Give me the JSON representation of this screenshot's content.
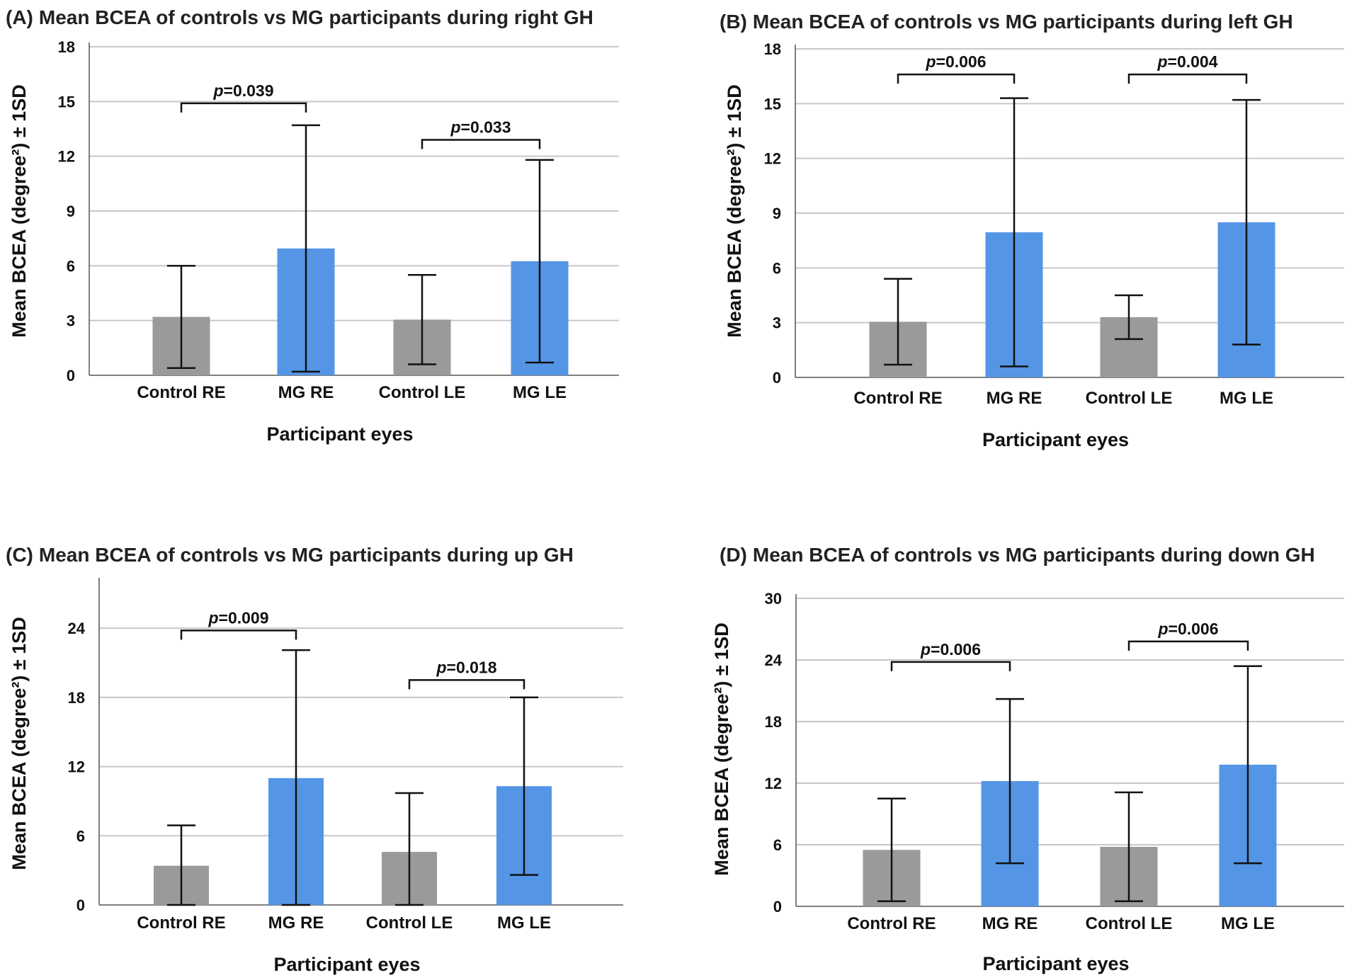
{
  "chart_data": [
    {
      "panel": "(A)",
      "type": "bar",
      "title": "Mean BCEA of controls vs MG participants during right GH",
      "xlabel": "Participant eyes",
      "ylabel": "Mean BCEA (degree²) ± 1SD",
      "ylim": [
        0,
        18
      ],
      "yticks": [
        0,
        3,
        6,
        9,
        12,
        15,
        18
      ],
      "categories": [
        "Control RE",
        "MG RE",
        "Control LE",
        "MG LE"
      ],
      "values": [
        3.2,
        6.95,
        3.05,
        6.25
      ],
      "sd": [
        2.8,
        6.75,
        2.45,
        5.55
      ],
      "bar_colors": [
        "#9a9a9a",
        "#5595e5",
        "#9a9a9a",
        "#5595e5"
      ],
      "comparisons": [
        {
          "from": 0,
          "to": 1,
          "label": "p=0.039",
          "p_symbol": "p",
          "p_value": "=0.039",
          "y": 14.9
        },
        {
          "from": 2,
          "to": 3,
          "label": "p=0.033",
          "p_symbol": "p",
          "p_value": "=0.033",
          "y": 12.9
        }
      ],
      "grid": true
    },
    {
      "panel": "(B)",
      "type": "bar",
      "title": "Mean BCEA of controls vs MG participants during left GH",
      "xlabel": "Participant eyes",
      "ylabel": "Mean BCEA (degree²) ± 1SD",
      "ylim": [
        0,
        18
      ],
      "yticks": [
        0,
        3,
        6,
        9,
        12,
        15,
        18
      ],
      "categories": [
        "Control RE",
        "MG RE",
        "Control LE",
        "MG LE"
      ],
      "values": [
        3.05,
        7.95,
        3.3,
        8.5
      ],
      "sd": [
        2.35,
        7.35,
        1.2,
        6.7
      ],
      "bar_colors": [
        "#9a9a9a",
        "#5595e5",
        "#9a9a9a",
        "#5595e5"
      ],
      "comparisons": [
        {
          "from": 0,
          "to": 1,
          "label": "p=0.006",
          "p_symbol": "p",
          "p_value": "=0.006",
          "y": 16.6
        },
        {
          "from": 2,
          "to": 3,
          "label": "p=0.004",
          "p_symbol": "p",
          "p_value": "=0.004",
          "y": 16.6
        }
      ],
      "grid": true
    },
    {
      "panel": "(C)",
      "type": "bar",
      "title": "Mean BCEA of controls vs MG participants during up GH",
      "xlabel": "Participant eyes",
      "ylabel": "Mean BCEA (degree²) ± 1SD",
      "ylim": [
        0,
        28
      ],
      "yticks": [
        0,
        6,
        12,
        18,
        24
      ],
      "categories": [
        "Control RE",
        "MG RE",
        "Control LE",
        "MG LE"
      ],
      "values": [
        3.4,
        11.0,
        4.6,
        10.3
      ],
      "sd": [
        3.5,
        11.1,
        5.1,
        7.7
      ],
      "bar_colors": [
        "#9a9a9a",
        "#5595e5",
        "#9a9a9a",
        "#5595e5"
      ],
      "comparisons": [
        {
          "from": 0,
          "to": 1,
          "label": "p=0.009",
          "p_symbol": "p",
          "p_value": "=0.009",
          "y": 23.8
        },
        {
          "from": 2,
          "to": 3,
          "label": "p=0.018",
          "p_symbol": "p",
          "p_value": "=0.018",
          "y": 19.5
        }
      ],
      "grid": true
    },
    {
      "panel": "(D)",
      "type": "bar",
      "title": "Mean BCEA of controls vs MG participants during down GH",
      "xlabel": "Participant eyes",
      "ylabel": "Mean BCEA (degree²) ± 1SD",
      "ylim": [
        0,
        30
      ],
      "yticks": [
        0,
        6,
        12,
        18,
        24,
        30
      ],
      "categories": [
        "Control RE",
        "MG RE",
        "Control LE",
        "MG LE"
      ],
      "values": [
        5.5,
        12.2,
        5.8,
        13.8
      ],
      "sd": [
        5.0,
        8.0,
        5.3,
        9.6
      ],
      "bar_colors": [
        "#9a9a9a",
        "#5595e5",
        "#9a9a9a",
        "#5595e5"
      ],
      "comparisons": [
        {
          "from": 0,
          "to": 1,
          "label": "p=0.006",
          "p_symbol": "p",
          "p_value": "=0.006",
          "y": 23.8
        },
        {
          "from": 2,
          "to": 3,
          "label": "p=0.006",
          "p_symbol": "p",
          "p_value": "=0.006",
          "y": 25.8
        }
      ],
      "grid": true
    }
  ]
}
